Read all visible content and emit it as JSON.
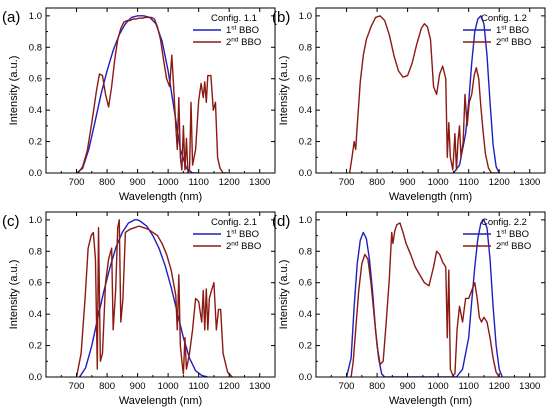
{
  "colors": {
    "series1": "#1f1fbf",
    "series2": "#8b1a12",
    "axis": "#000000"
  },
  "chart_data": [
    {
      "type": "line",
      "panel_label": "(a)",
      "legend_title": "Config. 1.1",
      "legend_placement": "top-right",
      "xlabel": "Wavelength (nm)",
      "ylabel": "Intensity (a.u.)",
      "xlim": [
        600,
        1350
      ],
      "ylim": [
        0,
        1.05
      ],
      "xticks": [
        "700",
        "800",
        "900",
        "1000",
        "1100",
        "1200",
        "1300"
      ],
      "yticks": [
        "0.0",
        "0.2",
        "0.4",
        "0.6",
        "0.8",
        "1.0"
      ],
      "series": [
        {
          "name": "1st BBO",
          "name_base": "1",
          "name_sup": "st",
          "name_rest": " BBO",
          "x": [
            700,
            720,
            740,
            760,
            780,
            800,
            820,
            840,
            860,
            880,
            900,
            920,
            940,
            960,
            980,
            1000,
            1020,
            1040,
            1060,
            1080,
            1100
          ],
          "y": [
            0.0,
            0.03,
            0.15,
            0.32,
            0.5,
            0.65,
            0.78,
            0.88,
            0.95,
            0.99,
            1.0,
            1.0,
            0.99,
            0.95,
            0.84,
            0.65,
            0.4,
            0.15,
            0.03,
            0.0,
            0.0
          ]
        },
        {
          "name": "2nd BBO",
          "name_base": "2",
          "name_sup": "nd",
          "name_rest": " BBO",
          "x": [
            705,
            720,
            735,
            750,
            765,
            775,
            785,
            795,
            805,
            815,
            825,
            835,
            845,
            855,
            865,
            875,
            885,
            895,
            905,
            915,
            925,
            935,
            945,
            955,
            965,
            975,
            985,
            995,
            1005,
            1012,
            1018,
            1025,
            1030,
            1035,
            1040,
            1045,
            1050,
            1055,
            1060,
            1065,
            1070,
            1075,
            1080,
            1090,
            1100,
            1108,
            1115,
            1120,
            1125,
            1130,
            1140,
            1148,
            1155,
            1162,
            1170,
            1180,
            1195
          ],
          "y": [
            0.0,
            0.04,
            0.14,
            0.32,
            0.52,
            0.63,
            0.62,
            0.5,
            0.42,
            0.55,
            0.72,
            0.85,
            0.92,
            0.96,
            0.97,
            0.97,
            0.98,
            0.98,
            0.985,
            0.985,
            0.99,
            0.99,
            0.99,
            0.98,
            0.93,
            0.85,
            0.72,
            0.6,
            0.55,
            0.75,
            0.55,
            0.3,
            0.15,
            0.48,
            0.1,
            0.02,
            0.3,
            0.02,
            0.22,
            0.0,
            0.02,
            0.45,
            0.05,
            0.15,
            0.46,
            0.57,
            0.48,
            0.58,
            0.45,
            0.62,
            0.62,
            0.4,
            0.45,
            0.1,
            0.03,
            0.0,
            0.0
          ]
        }
      ]
    },
    {
      "type": "line",
      "panel_label": "(b)",
      "legend_title": "Config. 1.2",
      "legend_placement": "top-right",
      "xlabel": "Wavelength (nm)",
      "ylabel": "Intensity (a.u.)",
      "xlim": [
        600,
        1350
      ],
      "ylim": [
        0,
        1.05
      ],
      "xticks": [
        "700",
        "800",
        "900",
        "1000",
        "1100",
        "1200",
        "1300"
      ],
      "yticks": [
        "0.0",
        "0.2",
        "0.4",
        "0.6",
        "0.8",
        "1.0"
      ],
      "series": [
        {
          "name": "1st BBO",
          "name_base": "1",
          "name_sup": "st",
          "name_rest": " BBO",
          "x": [
            1050,
            1070,
            1090,
            1100,
            1110,
            1120,
            1130,
            1140,
            1150,
            1160,
            1170,
            1180,
            1190,
            1200
          ],
          "y": [
            0.0,
            0.05,
            0.25,
            0.45,
            0.7,
            0.9,
            0.98,
            1.0,
            0.95,
            0.75,
            0.45,
            0.18,
            0.04,
            0.0
          ]
        },
        {
          "name": "2nd BBO",
          "name_base": "2",
          "name_sup": "nd",
          "name_rest": " BBO",
          "x": [
            710,
            718,
            725,
            730,
            735,
            745,
            755,
            765,
            780,
            795,
            810,
            825,
            840,
            855,
            870,
            885,
            900,
            915,
            930,
            945,
            955,
            965,
            975,
            985,
            995,
            1005,
            1015,
            1025,
            1030,
            1035,
            1040,
            1048,
            1055,
            1060,
            1065,
            1070,
            1075,
            1082,
            1088,
            1095,
            1102,
            1110,
            1118,
            1125,
            1133,
            1140,
            1148,
            1155,
            1165,
            1175,
            1185,
            1195
          ],
          "y": [
            0.0,
            0.1,
            0.2,
            0.15,
            0.3,
            0.58,
            0.75,
            0.85,
            0.93,
            0.99,
            1.0,
            0.97,
            0.88,
            0.75,
            0.65,
            0.61,
            0.62,
            0.7,
            0.82,
            0.92,
            0.95,
            0.93,
            0.85,
            0.55,
            0.5,
            0.63,
            0.68,
            0.6,
            0.1,
            0.32,
            0.1,
            0.02,
            0.25,
            0.02,
            0.2,
            0.3,
            0.1,
            0.2,
            0.5,
            0.3,
            0.45,
            0.5,
            0.62,
            0.67,
            0.6,
            0.42,
            0.25,
            0.12,
            0.03,
            0.0,
            0.0,
            0.0
          ]
        }
      ]
    },
    {
      "type": "line",
      "panel_label": "(c)",
      "legend_title": "Config. 2.1",
      "legend_placement": "top-right",
      "xlabel": "Wavelength (nm)",
      "ylabel": "Intensity (a.u.)",
      "xlim": [
        600,
        1350
      ],
      "ylim": [
        0,
        1.05
      ],
      "xticks": [
        "700",
        "800",
        "900",
        "1000",
        "1100",
        "1200",
        "1300"
      ],
      "yticks": [
        "0.0",
        "0.2",
        "0.4",
        "0.6",
        "0.8",
        "1.0"
      ],
      "series": [
        {
          "name": "1st BBO",
          "name_base": "1",
          "name_sup": "st",
          "name_rest": " BBO",
          "x": [
            710,
            730,
            750,
            770,
            790,
            810,
            830,
            850,
            870,
            890,
            900,
            910,
            930,
            950,
            970,
            990,
            1010,
            1030,
            1050,
            1070,
            1090,
            1110,
            1130
          ],
          "y": [
            0.0,
            0.06,
            0.2,
            0.38,
            0.55,
            0.7,
            0.83,
            0.92,
            0.98,
            1.0,
            1.0,
            0.99,
            0.96,
            0.9,
            0.82,
            0.71,
            0.57,
            0.41,
            0.25,
            0.12,
            0.04,
            0.01,
            0.0
          ]
        },
        {
          "name": "2nd BBO",
          "name_base": "2",
          "name_sup": "nd",
          "name_rest": " BBO",
          "x": [
            700,
            715,
            728,
            738,
            748,
            755,
            762,
            768,
            772,
            778,
            785,
            795,
            805,
            815,
            820,
            828,
            835,
            840,
            845,
            852,
            860,
            875,
            890,
            905,
            920,
            935,
            950,
            965,
            980,
            995,
            1010,
            1025,
            1030,
            1035,
            1040,
            1045,
            1050,
            1055,
            1060,
            1070,
            1080,
            1090,
            1100,
            1110,
            1115,
            1120,
            1125,
            1130,
            1135,
            1142,
            1150,
            1158,
            1165,
            1172,
            1180,
            1195,
            1210
          ],
          "y": [
            0.0,
            0.15,
            0.5,
            0.82,
            0.9,
            0.92,
            0.75,
            0.05,
            0.95,
            0.1,
            0.15,
            0.6,
            0.75,
            0.82,
            0.3,
            0.55,
            0.95,
            1.0,
            0.35,
            0.5,
            0.92,
            0.94,
            0.95,
            0.96,
            0.95,
            0.94,
            0.92,
            0.9,
            0.85,
            0.78,
            0.68,
            0.52,
            0.3,
            0.65,
            0.2,
            0.1,
            0.02,
            0.25,
            0.05,
            0.15,
            0.3,
            0.5,
            0.48,
            0.35,
            0.55,
            0.3,
            0.56,
            0.3,
            0.5,
            0.55,
            0.6,
            0.3,
            0.43,
            0.43,
            0.15,
            0.03,
            0.0
          ]
        }
      ]
    },
    {
      "type": "line",
      "panel_label": "(d)",
      "legend_title": "Config. 2.2",
      "legend_placement": "top-right",
      "xlabel": "Wavelength (nm)",
      "ylabel": "Intensity (a.u.)",
      "xlim": [
        600,
        1350
      ],
      "ylim": [
        0,
        1.05
      ],
      "xticks": [
        "700",
        "800",
        "900",
        "1000",
        "1100",
        "1200",
        "1300"
      ],
      "yticks": [
        "0.0",
        "0.2",
        "0.4",
        "0.6",
        "0.8",
        "1.0"
      ],
      "series": [
        {
          "name": "1st BBO",
          "name_base": "1",
          "name_sup": "st",
          "name_rest": " BBO",
          "x": [
            700,
            715,
            725,
            735,
            745,
            755,
            765,
            775,
            785,
            795,
            805,
            815,
            825,
            1060,
            1080,
            1100,
            1110,
            1120,
            1130,
            1140,
            1150,
            1160,
            1170,
            1180,
            1190,
            1200,
            1210
          ],
          "y": [
            0.0,
            0.12,
            0.45,
            0.72,
            0.87,
            0.92,
            0.88,
            0.75,
            0.55,
            0.3,
            0.12,
            0.02,
            0.0,
            0.0,
            0.05,
            0.25,
            0.48,
            0.7,
            0.88,
            0.98,
            1.0,
            0.95,
            0.75,
            0.45,
            0.2,
            0.05,
            0.0
          ]
        },
        {
          "name": "2nd BBO",
          "name_base": "2",
          "name_sup": "nd",
          "name_rest": " BBO",
          "x": [
            715,
            722,
            730,
            740,
            750,
            760,
            770,
            780,
            790,
            800,
            810,
            820,
            830,
            840,
            848,
            852,
            858,
            865,
            875,
            885,
            895,
            910,
            925,
            940,
            955,
            970,
            985,
            995,
            1005,
            1015,
            1025,
            1030,
            1035,
            1040,
            1048,
            1055,
            1062,
            1070,
            1080,
            1090,
            1100,
            1110,
            1120,
            1128,
            1135,
            1142,
            1150,
            1160,
            1170,
            1180,
            1190,
            1200
          ],
          "y": [
            0.0,
            0.1,
            0.3,
            0.55,
            0.72,
            0.78,
            0.75,
            0.6,
            0.4,
            0.2,
            0.08,
            0.1,
            0.35,
            0.62,
            0.92,
            0.85,
            0.93,
            0.97,
            0.98,
            0.92,
            0.85,
            0.78,
            0.7,
            0.65,
            0.6,
            0.58,
            0.7,
            0.8,
            0.78,
            0.73,
            0.7,
            0.25,
            0.68,
            0.05,
            0.01,
            0.02,
            0.3,
            0.45,
            0.35,
            0.5,
            0.5,
            0.55,
            0.6,
            0.5,
            0.38,
            0.35,
            0.38,
            0.35,
            0.25,
            0.12,
            0.03,
            0.0
          ]
        }
      ]
    }
  ]
}
